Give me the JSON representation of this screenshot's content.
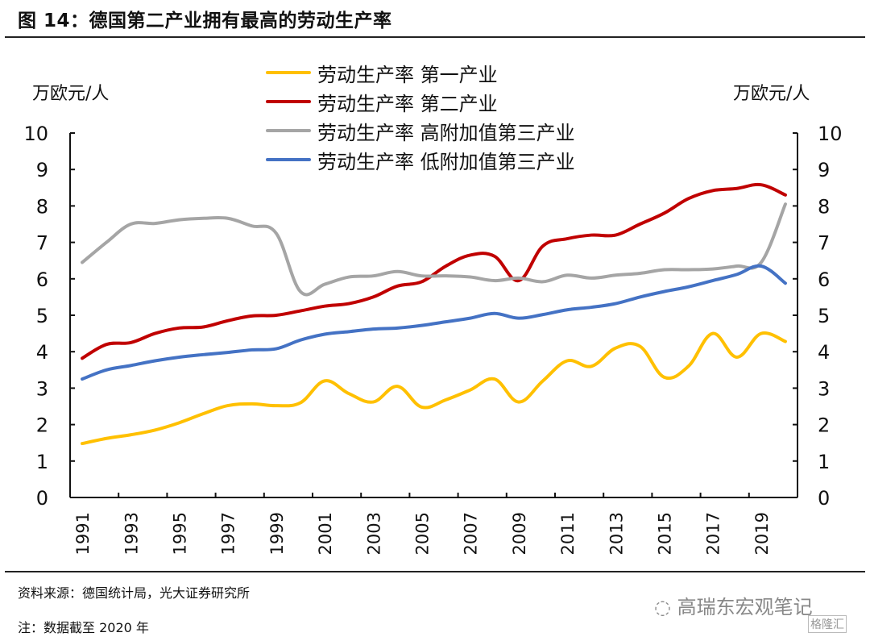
{
  "header": {
    "title": "图 14：德国第二产业拥有最高的劳动生产率"
  },
  "footer": {
    "source": "资料来源：德国统计局，光大证券研究所",
    "note": "注：数据截至 2020 年",
    "watermark": "高瑞东宏观笔记",
    "watermark_logo": "格隆汇"
  },
  "chart_data": {
    "type": "line",
    "title": "图 14：德国第二产业拥有最高的劳动生产率",
    "ylabel": "万欧元/人",
    "ylabel_right": "万欧元/人",
    "xlabel": "",
    "ylim": [
      0,
      10
    ],
    "ylim_right": [
      0,
      10
    ],
    "yticks": [
      "0",
      "1",
      "2",
      "3",
      "4",
      "5",
      "6",
      "7",
      "8",
      "9",
      "10"
    ],
    "x": [
      1991,
      1992,
      1993,
      1994,
      1995,
      1996,
      1997,
      1998,
      1999,
      2000,
      2001,
      2002,
      2003,
      2004,
      2005,
      2006,
      2007,
      2008,
      2009,
      2010,
      2011,
      2012,
      2013,
      2014,
      2015,
      2016,
      2017,
      2018,
      2019,
      2020
    ],
    "xtick_labels": [
      "1991",
      "1993",
      "1995",
      "1997",
      "1999",
      "2001",
      "2003",
      "2005",
      "2007",
      "2009",
      "2011",
      "2013",
      "2015",
      "2017",
      "2019"
    ],
    "grid": false,
    "legend_position": "top-center",
    "series": [
      {
        "name": "劳动生产率 第一产业",
        "color": "#FFC000",
        "values": [
          1.48,
          1.62,
          1.72,
          1.85,
          2.05,
          2.3,
          2.52,
          2.57,
          2.52,
          2.6,
          3.2,
          2.85,
          2.62,
          3.05,
          2.48,
          2.68,
          2.95,
          3.25,
          2.62,
          3.2,
          3.75,
          3.6,
          4.1,
          4.15,
          3.3,
          3.6,
          4.5,
          3.85,
          4.5,
          4.28
        ]
      },
      {
        "name": "劳动生产率 第二产业",
        "color": "#C00000",
        "values": [
          3.82,
          4.2,
          4.25,
          4.5,
          4.65,
          4.68,
          4.85,
          4.98,
          5.0,
          5.12,
          5.25,
          5.32,
          5.5,
          5.8,
          5.92,
          6.35,
          6.65,
          6.62,
          5.95,
          6.9,
          7.1,
          7.2,
          7.2,
          7.5,
          7.8,
          8.2,
          8.42,
          8.48,
          8.58,
          8.3
        ]
      },
      {
        "name": "劳动生产率 高附加值第三产业",
        "color": "#A5A5A5",
        "values": [
          6.45,
          7.0,
          7.5,
          7.52,
          7.62,
          7.66,
          7.66,
          7.45,
          7.25,
          5.65,
          5.85,
          6.05,
          6.08,
          6.2,
          6.08,
          6.08,
          6.05,
          5.95,
          6.02,
          5.92,
          6.1,
          6.02,
          6.1,
          6.15,
          6.25,
          6.25,
          6.27,
          6.35,
          6.45,
          8.05
        ]
      },
      {
        "name": "劳动生产率 低附加值第三产业",
        "color": "#4472C4",
        "values": [
          3.25,
          3.5,
          3.62,
          3.75,
          3.85,
          3.92,
          3.98,
          4.05,
          4.08,
          4.32,
          4.48,
          4.55,
          4.62,
          4.65,
          4.72,
          4.82,
          4.92,
          5.05,
          4.92,
          5.02,
          5.15,
          5.22,
          5.32,
          5.5,
          5.65,
          5.78,
          5.95,
          6.12,
          6.35,
          5.88
        ]
      }
    ]
  }
}
